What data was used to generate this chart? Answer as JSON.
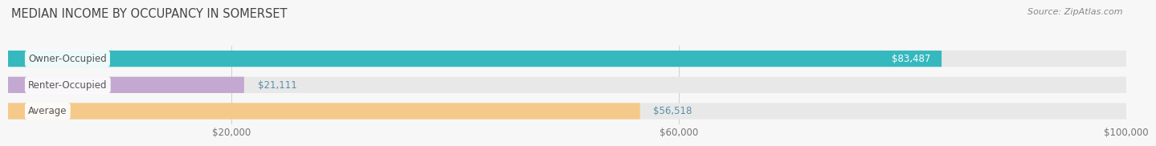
{
  "title": "MEDIAN INCOME BY OCCUPANCY IN SOMERSET",
  "source": "Source: ZipAtlas.com",
  "categories": [
    "Owner-Occupied",
    "Renter-Occupied",
    "Average"
  ],
  "values": [
    83487,
    21111,
    56518
  ],
  "bar_colors": [
    "#35b8be",
    "#c3a8d1",
    "#f5c98a"
  ],
  "bar_bg_color": "#e8e8e8",
  "xlim": [
    0,
    100000
  ],
  "xticks": [
    20000,
    60000,
    100000
  ],
  "xtick_labels": [
    "$20,000",
    "$60,000",
    "$100,000"
  ],
  "title_fontsize": 10.5,
  "tick_fontsize": 8.5,
  "bar_label_fontsize": 8.5,
  "value_label_fontsize": 8.5,
  "bar_height": 0.62,
  "bg_color": "#f7f7f7",
  "value_labels": [
    "$83,487",
    "$21,111",
    "$56,518"
  ],
  "grid_color": "#d0d0d0",
  "label_bg_color": "#ffffff",
  "label_text_color": "#555555",
  "value_color_inside": "#ffffff",
  "value_color_outside": "#5a8fa8"
}
